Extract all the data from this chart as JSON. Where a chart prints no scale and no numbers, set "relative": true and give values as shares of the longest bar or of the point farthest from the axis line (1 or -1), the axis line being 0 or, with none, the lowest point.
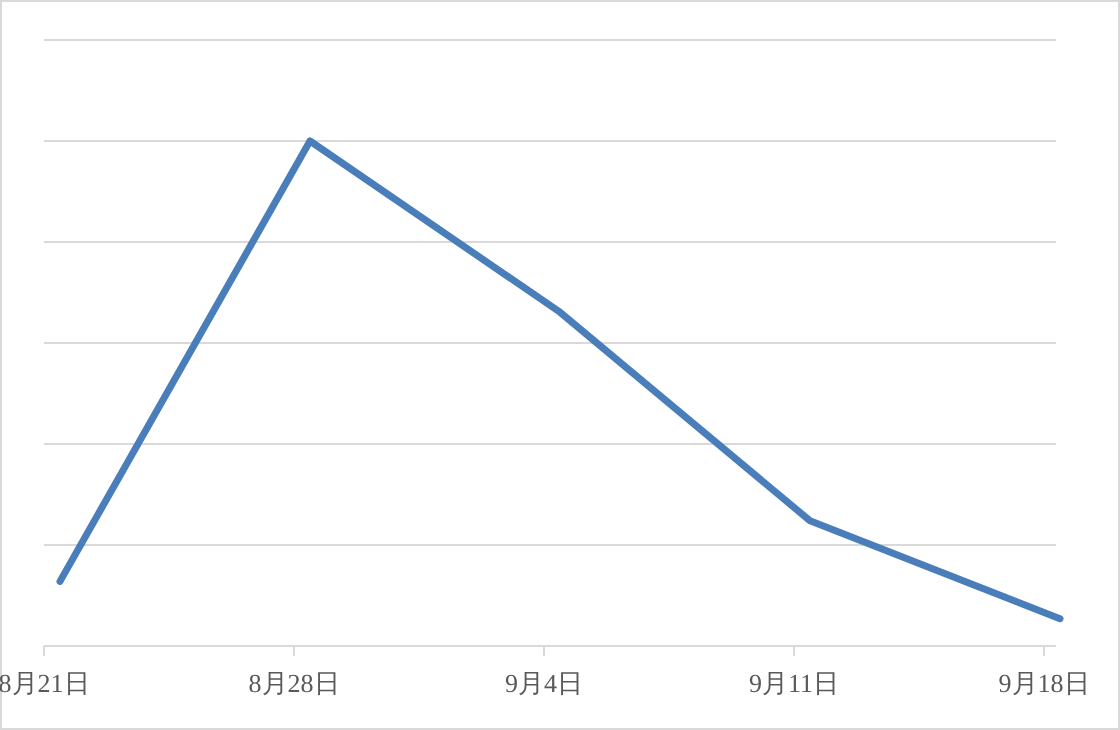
{
  "chart_data": {
    "type": "line",
    "relative": true,
    "categories": [
      "8月21日",
      "8月28日",
      "9月4日",
      "9月11日",
      "9月18日"
    ],
    "series": [
      {
        "color": "#4a7ebb",
        "values": [
          0.128,
          1,
          0.661,
          0.248,
          0.054
        ]
      }
    ],
    "grid": "y",
    "marker": "none",
    "line_style": "solid"
  }
}
